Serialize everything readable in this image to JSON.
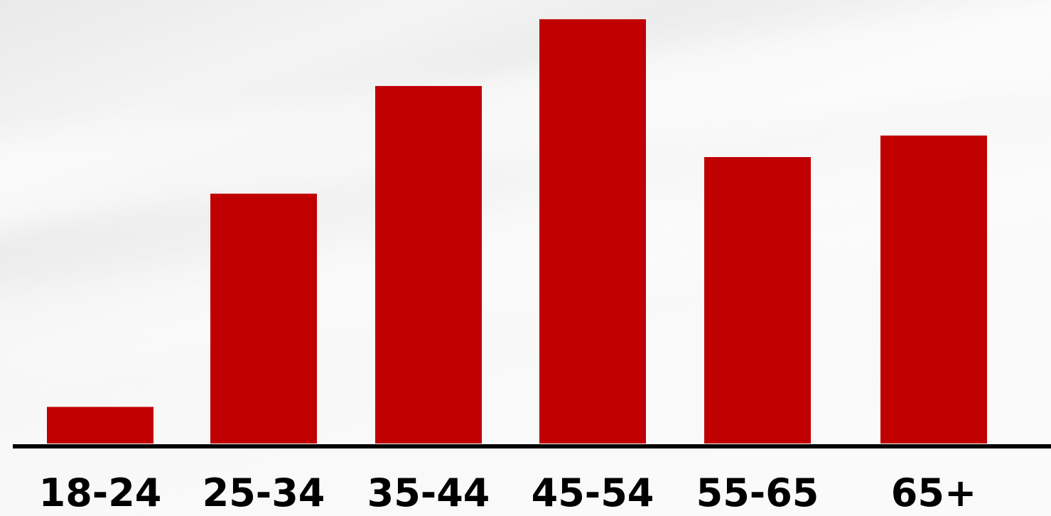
{
  "chart_data": {
    "type": "bar",
    "categories": [
      "18-24",
      "25-34",
      "35-44",
      "45-54",
      "55-65",
      "65+"
    ],
    "values": [
      8.5,
      58,
      83,
      98.5,
      66.5,
      71.5
    ],
    "ylim": [
      0,
      100
    ],
    "title": "",
    "xlabel": "",
    "ylabel": "",
    "grid": false,
    "bar_color": "#c00000",
    "axis_color": "#000000",
    "label_color": "#000000"
  }
}
